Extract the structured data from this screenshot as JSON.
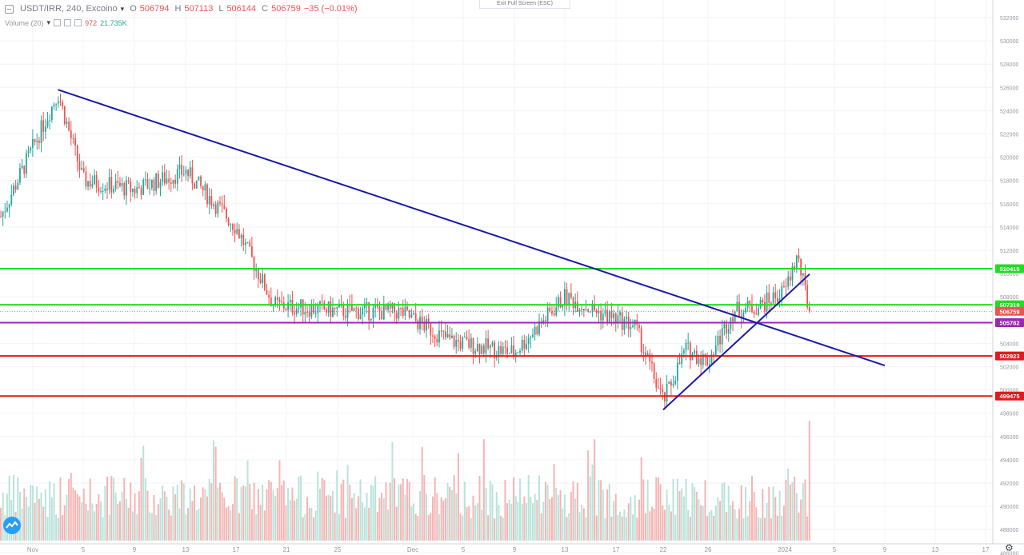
{
  "header": {
    "symbol": "USDT/IRR, 240, Excoino",
    "open_label": "O",
    "open": "506794",
    "high_label": "H",
    "high": "507113",
    "low_label": "L",
    "low": "506144",
    "close_label": "C",
    "close": "506759",
    "change": "−35 (−0.01%)"
  },
  "volume_legend": {
    "label": "Volume (20)",
    "value1": "972",
    "value2": "21.735K"
  },
  "exit_fullscreen": "Exit Full Screen (ESC)",
  "colors": {
    "up": "#26a69a",
    "down": "#ef5350",
    "up_vol": "#b9e3d9",
    "down_vol": "#f5b5b4",
    "trendline": "#1a1aa8",
    "support_green": "#22dd22",
    "support_red": "#e01b1b",
    "purple": "#9c27b0"
  },
  "chart_data": {
    "type": "candlestick",
    "y_tick_labels": [
      "532000",
      "530000",
      "528000",
      "526000",
      "524000",
      "522000",
      "520000",
      "518000",
      "516000",
      "514000",
      "512000",
      "510000",
      "508000",
      "506000",
      "504000",
      "502000",
      "500000",
      "498000",
      "496000",
      "494000",
      "492000",
      "490000",
      "488000",
      "486000"
    ],
    "x_tick_labels": [
      "Nov",
      "5",
      "9",
      "13",
      "17",
      "21",
      "25",
      "Dec",
      "5",
      "9",
      "13",
      "17",
      "22",
      "26",
      "2024",
      "5",
      "9",
      "13",
      "17"
    ],
    "horizontal_lines": [
      {
        "value": 510415,
        "label": "510415",
        "color": "#22dd22"
      },
      {
        "value": 507319,
        "label": "507319",
        "color": "#22dd22"
      },
      {
        "value": 506759,
        "label": "506759",
        "color": "#ef5350"
      },
      {
        "value": 505782,
        "label": "505782",
        "color": "#9c27b0"
      },
      {
        "value": 502923,
        "label": "502923",
        "color": "#e01b1b"
      },
      {
        "value": 499475,
        "label": "499475",
        "color": "#e01b1b"
      }
    ],
    "trendlines": [
      {
        "name": "",
        "from": {
          "date": "Nov 3",
          "price": 525800
        },
        "to": {
          "date": "Jan 9",
          "price": 502100
        }
      },
      {
        "name": "",
        "from": {
          "date": "Dec 22",
          "price": 498300
        },
        "to": {
          "date": "Jan 3",
          "price": 509950
        }
      }
    ],
    "price_anchors": [
      {
        "date": "Oct 30",
        "price": 518500
      },
      {
        "date": "Nov 3",
        "price": 525500
      },
      {
        "date": "Nov 5",
        "price": 518000
      },
      {
        "date": "Nov 9",
        "price": 517200
      },
      {
        "date": "Nov 13",
        "price": 518800
      },
      {
        "date": "Nov 17",
        "price": 514000
      },
      {
        "date": "Nov 20",
        "price": 507300
      },
      {
        "date": "Nov 25",
        "price": 506800
      },
      {
        "date": "Nov 30",
        "price": 506700
      },
      {
        "date": "Dec 4",
        "price": 504200
      },
      {
        "date": "Dec 9",
        "price": 503200
      },
      {
        "date": "Dec 13",
        "price": 508000
      },
      {
        "date": "Dec 16",
        "price": 506500
      },
      {
        "date": "Dec 19",
        "price": 505500
      },
      {
        "date": "Dec 22",
        "price": 499000
      },
      {
        "date": "Dec 24",
        "price": 503500
      },
      {
        "date": "Dec 26",
        "price": 502500
      },
      {
        "date": "Dec 28",
        "price": 506800
      },
      {
        "date": "Dec 30",
        "price": 507200
      },
      {
        "date": "Jan 1",
        "price": 508500
      },
      {
        "date": "Jan 2",
        "price": 511500
      },
      {
        "date": "Jan 3",
        "price": 506759
      }
    ],
    "volume": {
      "typical_range": [
        4000,
        12000
      ],
      "last_bar": 21735
    }
  }
}
